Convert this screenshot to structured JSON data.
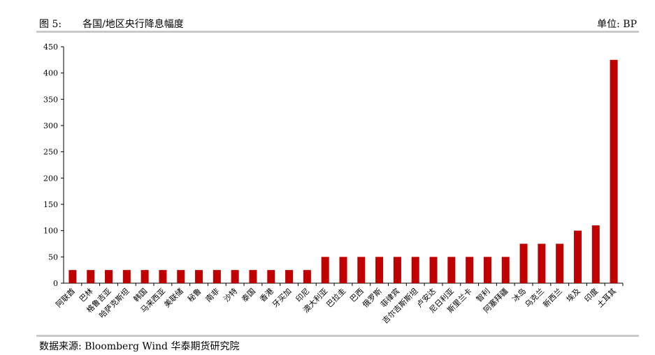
{
  "header": {
    "figure_label": "图 5:",
    "title": "各国/地区央行降息幅度",
    "unit": "单位: BP"
  },
  "footer": {
    "source": "数据来源: Bloomberg Wind 华泰期货研究院"
  },
  "colors": {
    "bar": "#c00000",
    "axis": "#000000",
    "rule": "#c9c9c9"
  },
  "chart_data": {
    "type": "bar",
    "title": "",
    "xlabel": "",
    "ylabel": "",
    "ylim": [
      0,
      450
    ],
    "yticks": [
      0,
      50,
      100,
      150,
      200,
      250,
      300,
      350,
      400,
      450
    ],
    "grid": false,
    "categories": [
      "阿联酋",
      "巴林",
      "格鲁吉亚",
      "哈萨克斯坦",
      "韩国",
      "马来西亚",
      "美联储",
      "秘鲁",
      "南非",
      "沙特",
      "泰国",
      "香港",
      "牙买加",
      "印尼",
      "澳大利亚",
      "巴拉圭",
      "巴西",
      "俄罗斯",
      "菲律宾",
      "吉尔吉斯斯坦",
      "卢安达",
      "尼日利亚",
      "斯里兰卡",
      "智利",
      "阿塞拜疆",
      "冰岛",
      "乌克兰",
      "新西兰",
      "埃及",
      "印度",
      "土耳其"
    ],
    "values": [
      25,
      25,
      25,
      25,
      25,
      25,
      25,
      25,
      25,
      25,
      25,
      25,
      25,
      25,
      50,
      50,
      50,
      50,
      50,
      50,
      50,
      50,
      50,
      50,
      50,
      75,
      75,
      75,
      100,
      110,
      425
    ]
  }
}
